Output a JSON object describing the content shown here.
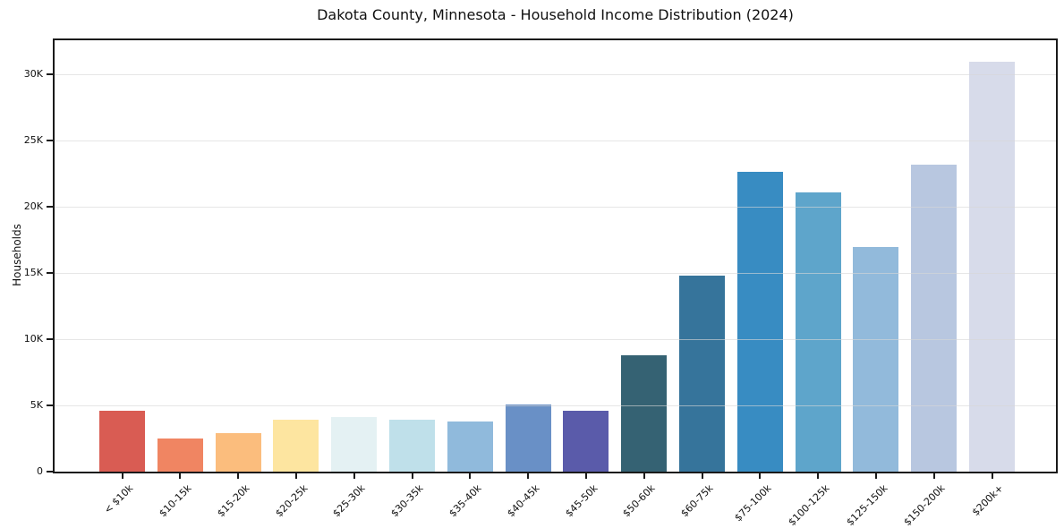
{
  "chart_data": {
    "type": "bar",
    "title": "Dakota County, Minnesota - Household Income Distribution (2024)",
    "xlabel": "",
    "ylabel": "Households",
    "categories": [
      "< $10k",
      "$10-15k",
      "$15-20k",
      "$20-25k",
      "$25-30k",
      "$30-35k",
      "$35-40k",
      "$40-45k",
      "$45-50k",
      "$50-60k",
      "$60-75k",
      "$75-100k",
      "$100-125k",
      "$125-150k",
      "$150-200k",
      "$200k+"
    ],
    "values": [
      4600,
      2500,
      2900,
      3900,
      4100,
      3900,
      3800,
      5100,
      4600,
      8800,
      14800,
      22650,
      21100,
      17000,
      23200,
      31000
    ],
    "bar_colors": [
      "#d95c53",
      "#f08562",
      "#fbbd7d",
      "#fde5a0",
      "#e4f1f3",
      "#bfe0ea",
      "#90badc",
      "#6990c6",
      "#5a5baa",
      "#356273",
      "#36749b",
      "#388cc2",
      "#5ea5cb",
      "#92badb",
      "#b8c7e0",
      "#d7dbea"
    ],
    "ylim": [
      0,
      32600
    ],
    "ytick_values": [
      0,
      5000,
      10000,
      15000,
      20000,
      25000,
      30000
    ],
    "ytick_labels": [
      "0",
      "5K",
      "10K",
      "15K",
      "20K",
      "25K",
      "30K"
    ],
    "grid": "horizontal",
    "legend": "none",
    "plot_background": "#ffffff",
    "axis_color": "#1a1a1a"
  }
}
